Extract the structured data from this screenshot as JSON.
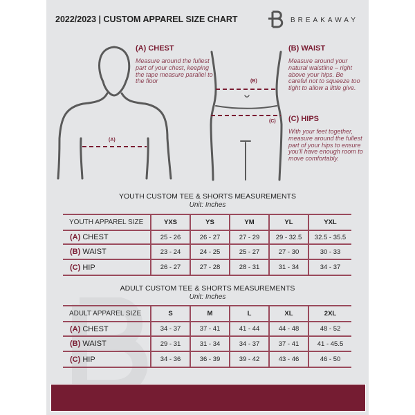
{
  "header": {
    "title": "2022/2023 | CUSTOM APPAREL SIZE CHART",
    "brand": "BREAKAWAY",
    "brand_letter": "B"
  },
  "measures": {
    "chest": {
      "label": "(A) CHEST",
      "marker": "(A)",
      "text": "Measure around the fullest part of your chest, keeping the tape measure parallel to the floor"
    },
    "waist": {
      "label": "(B) WAIST",
      "marker": "(B)",
      "text": "Measure around your natural waistline – right above your hips. Be careful not to squeeze too tight to allow a little give."
    },
    "hips": {
      "label": "(C) HIPS",
      "marker": "(C)",
      "text": "With your feet together, measure around the fullest part of your hips to ensure you'll have enough room to move comfortably."
    }
  },
  "youth": {
    "title": "YOUTH CUSTOM TEE & SHORTS MEASUREMENTS",
    "unit": "Unit: Inches",
    "header": "YOUTH APPAREL SIZE",
    "sizes": [
      "YXS",
      "YS",
      "YM",
      "YL",
      "YXL"
    ],
    "rows": [
      {
        "code": "(A)",
        "name": "CHEST",
        "values": [
          "25 - 26",
          "26 - 27",
          "27 - 29",
          "29 - 32.5",
          "32.5 - 35.5"
        ]
      },
      {
        "code": "(B)",
        "name": "WAIST",
        "values": [
          "23 - 24",
          "24 - 25",
          "25 - 27",
          "27 - 30",
          "30 - 33"
        ]
      },
      {
        "code": "(C)",
        "name": "HIP",
        "values": [
          "26 - 27",
          "27 - 28",
          "28 - 31",
          "31 - 34",
          "34 - 37"
        ]
      }
    ]
  },
  "adult": {
    "title": "ADULT CUSTOM TEE & SHORTS MEASUREMENTS",
    "unit": "Unit: Inches",
    "header": "ADULT APPAREL SIZE",
    "sizes": [
      "S",
      "M",
      "L",
      "XL",
      "2XL"
    ],
    "rows": [
      {
        "code": "(A)",
        "name": "CHEST",
        "values": [
          "34 - 37",
          "37 - 41",
          "41 - 44",
          "44 - 48",
          "48 - 52"
        ]
      },
      {
        "code": "(B)",
        "name": "WAIST",
        "values": [
          "29 - 31",
          "31 - 34",
          "34 - 37",
          "37 - 41",
          "41 - 45.5"
        ]
      },
      {
        "code": "(C)",
        "name": "HIP",
        "values": [
          "34 - 36",
          "36 - 39",
          "39 - 42",
          "43 - 46",
          "46 - 50"
        ]
      }
    ]
  },
  "colors": {
    "accent": "#751c32",
    "background": "#e4e5e7"
  }
}
